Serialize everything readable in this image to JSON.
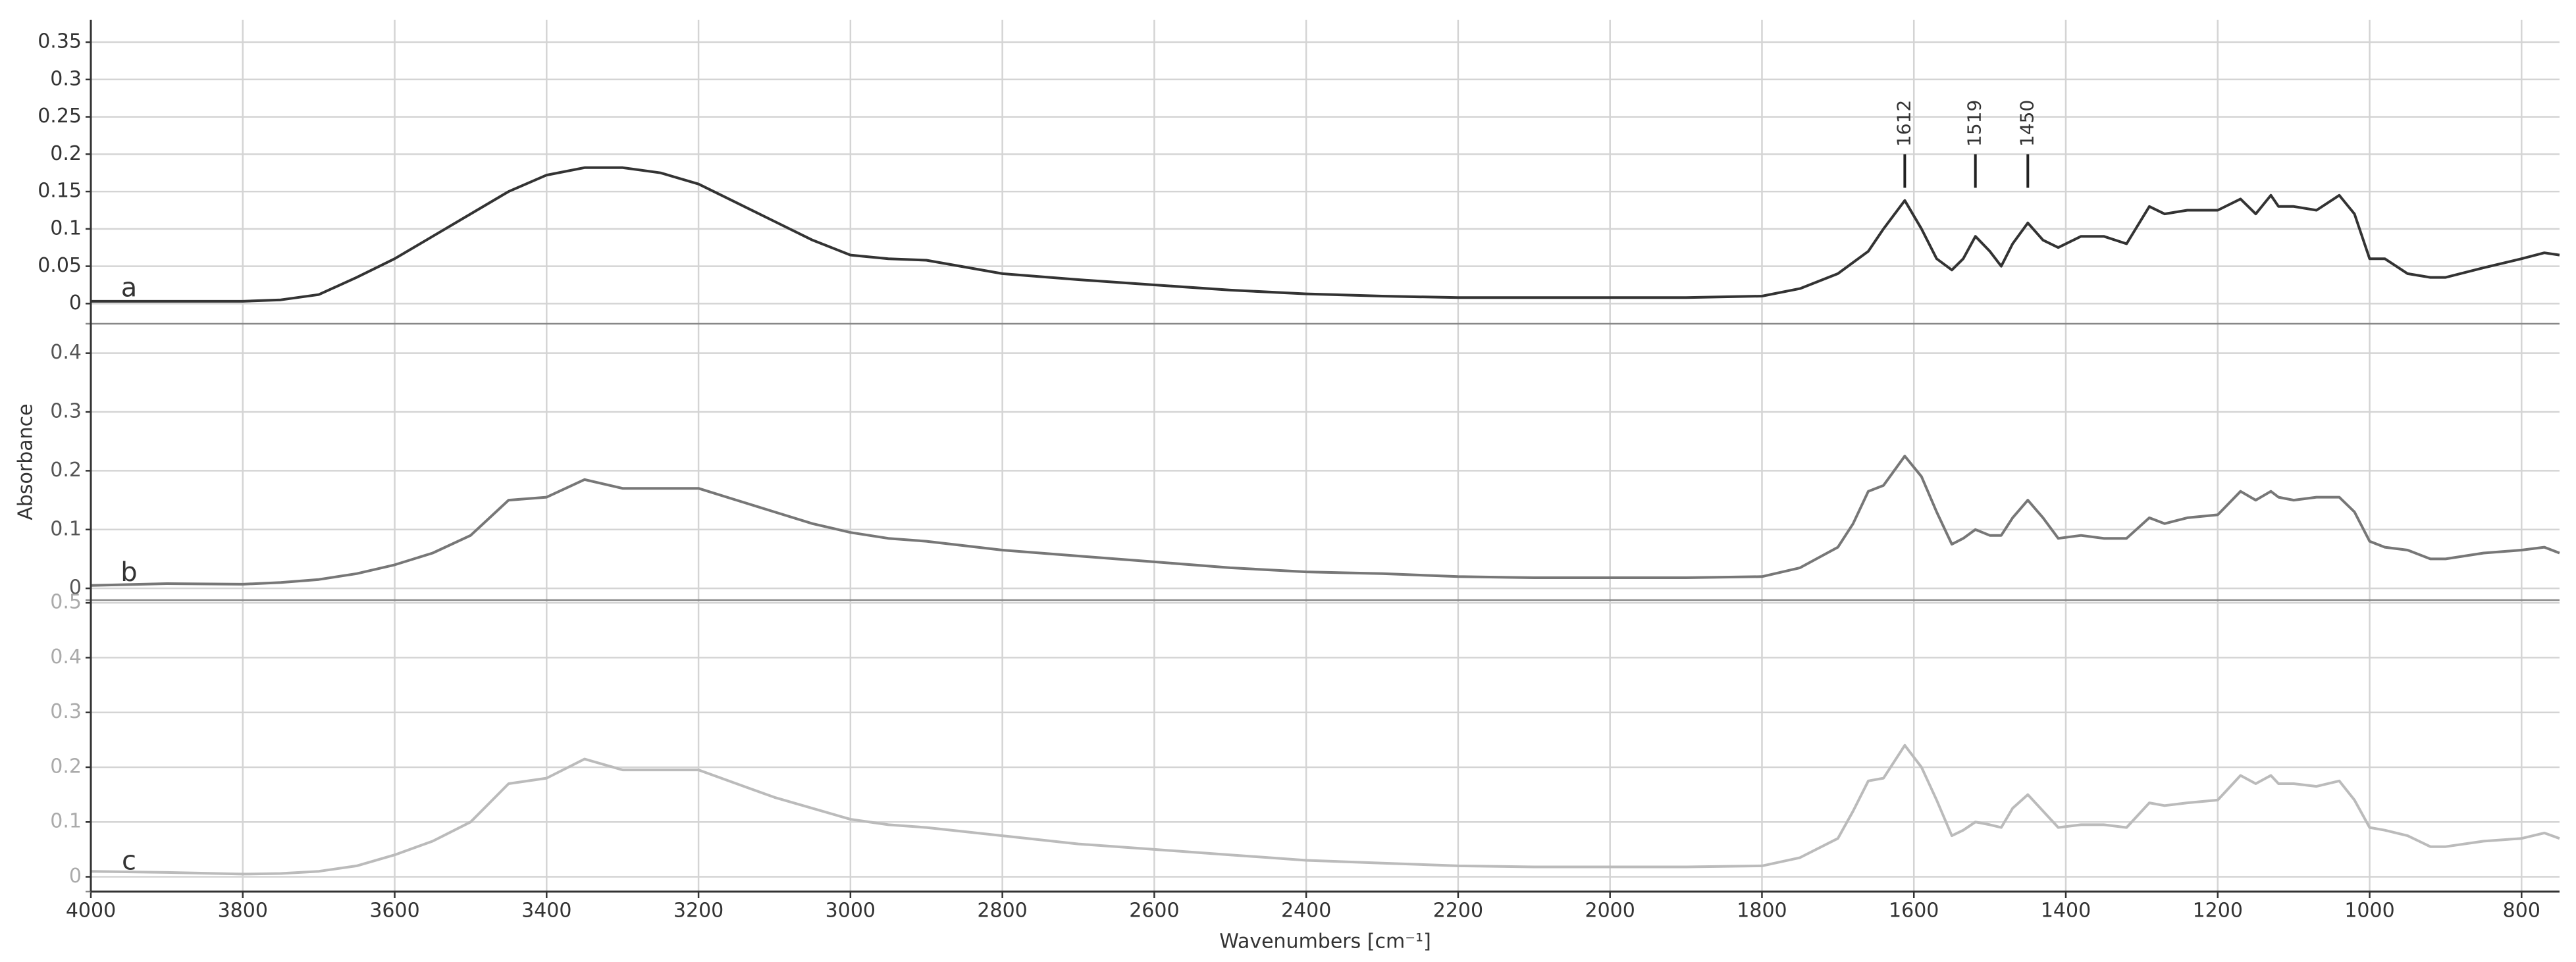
{
  "chart_data": [
    {
      "type": "line",
      "xlim": [
        4000,
        750
      ],
      "ylim": [
        -0.027,
        0.38
      ],
      "yticks": [
        0,
        0.05,
        0.1,
        0.15,
        0.2,
        0.25,
        0.3,
        0.35
      ],
      "tick_color": "#333333",
      "grid": true,
      "x": [
        4000,
        3900,
        3800,
        3750,
        3700,
        3650,
        3600,
        3550,
        3500,
        3450,
        3400,
        3350,
        3300,
        3250,
        3200,
        3150,
        3100,
        3050,
        3000,
        2950,
        2900,
        2800,
        2700,
        2600,
        2500,
        2400,
        2300,
        2200,
        2100,
        2000,
        1900,
        1800,
        1750,
        1700,
        1680,
        1660,
        1640,
        1612,
        1590,
        1570,
        1550,
        1535,
        1519,
        1500,
        1485,
        1470,
        1450,
        1430,
        1410,
        1380,
        1350,
        1320,
        1290,
        1270,
        1240,
        1200,
        1170,
        1150,
        1130,
        1120,
        1100,
        1070,
        1040,
        1020,
        1000,
        980,
        950,
        920,
        900,
        850,
        800,
        770,
        750
      ],
      "series": [
        {
          "name": "a",
          "color": "#333333",
          "values": [
            0.003,
            0.003,
            0.003,
            0.005,
            0.012,
            0.035,
            0.06,
            0.09,
            0.12,
            0.15,
            0.172,
            0.182,
            0.182,
            0.175,
            0.16,
            0.135,
            0.11,
            0.085,
            0.065,
            0.06,
            0.058,
            0.04,
            0.032,
            0.025,
            0.018,
            0.013,
            0.01,
            0.008,
            0.008,
            0.008,
            0.008,
            0.01,
            0.02,
            0.04,
            0.055,
            0.07,
            0.1,
            0.138,
            0.1,
            0.06,
            0.045,
            0.06,
            0.09,
            0.07,
            0.05,
            0.08,
            0.108,
            0.085,
            0.075,
            0.09,
            0.09,
            0.08,
            0.13,
            0.12,
            0.125,
            0.125,
            0.14,
            0.12,
            0.145,
            0.13,
            0.13,
            0.125,
            0.145,
            0.12,
            0.06,
            0.06,
            0.04,
            0.035,
            0.035,
            0.048,
            0.06,
            0.068,
            0.065
          ]
        }
      ],
      "annotations": [
        {
          "text": "1612",
          "x": 1612
        },
        {
          "text": "1519",
          "x": 1519
        },
        {
          "text": "1450",
          "x": 1450
        }
      ]
    },
    {
      "type": "line",
      "xlim": [
        4000,
        750
      ],
      "ylim": [
        -0.02,
        0.45
      ],
      "yticks": [
        0,
        0.1,
        0.2,
        0.3,
        0.4
      ],
      "tick_color": "#555555",
      "grid": true,
      "ylabel": "Absorbance",
      "x": [
        4000,
        3900,
        3800,
        3750,
        3700,
        3650,
        3600,
        3550,
        3500,
        3450,
        3400,
        3350,
        3300,
        3250,
        3200,
        3150,
        3100,
        3050,
        3000,
        2950,
        2900,
        2800,
        2700,
        2600,
        2500,
        2400,
        2300,
        2200,
        2100,
        2000,
        1900,
        1800,
        1750,
        1700,
        1680,
        1660,
        1640,
        1612,
        1590,
        1570,
        1550,
        1535,
        1519,
        1500,
        1485,
        1470,
        1450,
        1430,
        1410,
        1380,
        1350,
        1320,
        1290,
        1270,
        1240,
        1200,
        1170,
        1150,
        1130,
        1120,
        1100,
        1070,
        1040,
        1020,
        1000,
        980,
        950,
        920,
        900,
        850,
        800,
        770,
        750
      ],
      "series": [
        {
          "name": "b",
          "color": "#777777",
          "values": [
            0.005,
            0.008,
            0.007,
            0.01,
            0.015,
            0.025,
            0.04,
            0.06,
            0.09,
            0.15,
            0.155,
            0.185,
            0.17,
            0.17,
            0.17,
            0.15,
            0.13,
            0.11,
            0.095,
            0.085,
            0.08,
            0.065,
            0.055,
            0.045,
            0.035,
            0.028,
            0.025,
            0.02,
            0.018,
            0.018,
            0.018,
            0.02,
            0.035,
            0.07,
            0.11,
            0.165,
            0.175,
            0.225,
            0.19,
            0.13,
            0.075,
            0.085,
            0.1,
            0.09,
            0.09,
            0.12,
            0.15,
            0.12,
            0.085,
            0.09,
            0.085,
            0.085,
            0.12,
            0.11,
            0.12,
            0.125,
            0.165,
            0.15,
            0.165,
            0.155,
            0.15,
            0.155,
            0.155,
            0.13,
            0.08,
            0.07,
            0.065,
            0.05,
            0.05,
            0.06,
            0.065,
            0.07,
            0.06
          ]
        }
      ]
    },
    {
      "type": "line",
      "xlim": [
        4000,
        750
      ],
      "ylim": [
        -0.027,
        0.505
      ],
      "yticks": [
        0,
        0.1,
        0.2,
        0.3,
        0.4,
        0.5
      ],
      "tick_color": "#aaaaaa",
      "grid": true,
      "xticks": [
        4000,
        3800,
        3600,
        3400,
        3200,
        3000,
        2800,
        2600,
        2400,
        2200,
        2000,
        1800,
        1600,
        1400,
        1200,
        1000,
        800
      ],
      "xlabel": "Wavenumbers [cm⁻¹]",
      "x": [
        4000,
        3900,
        3800,
        3750,
        3700,
        3650,
        3600,
        3550,
        3500,
        3450,
        3400,
        3350,
        3300,
        3250,
        3200,
        3150,
        3100,
        3050,
        3000,
        2950,
        2900,
        2800,
        2700,
        2600,
        2500,
        2400,
        2300,
        2200,
        2100,
        2000,
        1900,
        1800,
        1750,
        1700,
        1680,
        1660,
        1640,
        1612,
        1590,
        1570,
        1550,
        1535,
        1519,
        1500,
        1485,
        1470,
        1450,
        1430,
        1410,
        1380,
        1350,
        1320,
        1290,
        1270,
        1240,
        1200,
        1170,
        1150,
        1130,
        1120,
        1100,
        1070,
        1040,
        1020,
        1000,
        980,
        950,
        920,
        900,
        850,
        800,
        770,
        750
      ],
      "series": [
        {
          "name": "c",
          "color": "#bbbbbb",
          "values": [
            0.01,
            0.008,
            0.005,
            0.006,
            0.01,
            0.02,
            0.04,
            0.065,
            0.1,
            0.17,
            0.18,
            0.215,
            0.195,
            0.195,
            0.195,
            0.17,
            0.145,
            0.125,
            0.105,
            0.095,
            0.09,
            0.075,
            0.06,
            0.05,
            0.04,
            0.03,
            0.025,
            0.02,
            0.018,
            0.018,
            0.018,
            0.02,
            0.035,
            0.07,
            0.12,
            0.175,
            0.18,
            0.24,
            0.2,
            0.14,
            0.075,
            0.085,
            0.1,
            0.095,
            0.09,
            0.125,
            0.15,
            0.12,
            0.09,
            0.095,
            0.095,
            0.09,
            0.135,
            0.13,
            0.135,
            0.14,
            0.185,
            0.17,
            0.185,
            0.17,
            0.17,
            0.165,
            0.175,
            0.14,
            0.09,
            0.085,
            0.075,
            0.055,
            0.055,
            0.065,
            0.07,
            0.08,
            0.07
          ]
        }
      ]
    }
  ]
}
